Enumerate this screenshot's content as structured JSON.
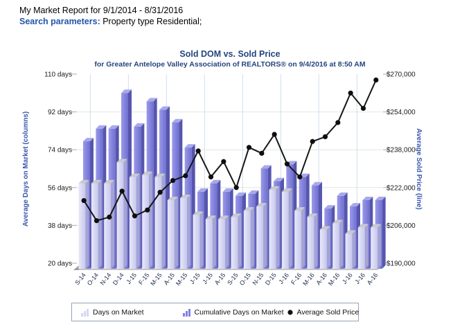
{
  "header": {
    "report_title": "My Market Report for 9/1/2014 - 8/31/2016",
    "search_parameters_label": "Search parameters:",
    "search_parameters_value": "Property type Residential;"
  },
  "chart_data": {
    "type": "bar",
    "combo": "columns+line",
    "title": "Sold DOM vs. Sold Price",
    "subtitle": "for Greater Antelope Valley Association of REALTORS® on 9/4/2016 at 8:50 AM",
    "categories": [
      "S-14",
      "O-14",
      "N-14",
      "D-14",
      "J-15",
      "F-15",
      "M-15",
      "A-15",
      "M-15",
      "J-15",
      "J-15",
      "A-15",
      "S-15",
      "O-15",
      "N-15",
      "D-15",
      "J-16",
      "F-16",
      "M-16",
      "A-16",
      "M-16",
      "J-16",
      "J-16",
      "A-16"
    ],
    "series": [
      {
        "name": "Days on Market",
        "type": "column",
        "axis": "left",
        "color": "#d6d6f5",
        "values": [
          58,
          58,
          58,
          68,
          61,
          62,
          61,
          50,
          51,
          43,
          41,
          41,
          42,
          45,
          47,
          55,
          54,
          45,
          42,
          36,
          39,
          34,
          37,
          37
        ]
      },
      {
        "name": "Cumulative Days on Market",
        "type": "column",
        "axis": "left",
        "color": "#8181e1",
        "values": [
          78,
          84,
          84,
          101,
          85,
          97,
          93,
          87,
          75,
          54,
          58,
          54,
          52,
          53,
          65,
          59,
          67,
          61,
          57,
          46,
          52,
          47,
          50,
          50
        ]
      },
      {
        "name": "Average Sold Price",
        "type": "line",
        "axis": "right",
        "color": "#111111",
        "values": [
          216500,
          208000,
          209500,
          220500,
          210000,
          212500,
          220000,
          225000,
          227000,
          237500,
          226500,
          233000,
          222000,
          239000,
          236500,
          244500,
          232000,
          226500,
          241500,
          243500,
          249500,
          262000,
          255500,
          267500
        ]
      }
    ],
    "left_axis": {
      "label": "Average Days on Market (columns)",
      "min": 20,
      "max": 110,
      "tick_values": [
        20,
        38,
        56,
        74,
        92,
        110
      ],
      "tick_labels": [
        "20 days",
        "38 days",
        "56 days",
        "74 days",
        "92 days",
        "110 days"
      ]
    },
    "right_axis": {
      "label": "Average Sold Price (line)",
      "min": 190000,
      "max": 270000,
      "tick_values": [
        190000,
        206000,
        222000,
        238000,
        254000,
        270000
      ],
      "tick_labels": [
        "$190,000",
        "$206,000",
        "$222,000",
        "$238,000",
        "$254,000",
        "$270,000"
      ]
    },
    "grid": true,
    "legend_position": "bottom"
  },
  "colors": {
    "h_gridline": "#dde9dc",
    "v_gridline": "#cfdeee",
    "tick_mark": "#aaaaaa",
    "floor": "#c6c6c6",
    "floor_edge": "#9e9e9e",
    "axis_title": "#3a57ae",
    "tick_text": "#1a1a1a",
    "x_label_text": "#18264a"
  }
}
